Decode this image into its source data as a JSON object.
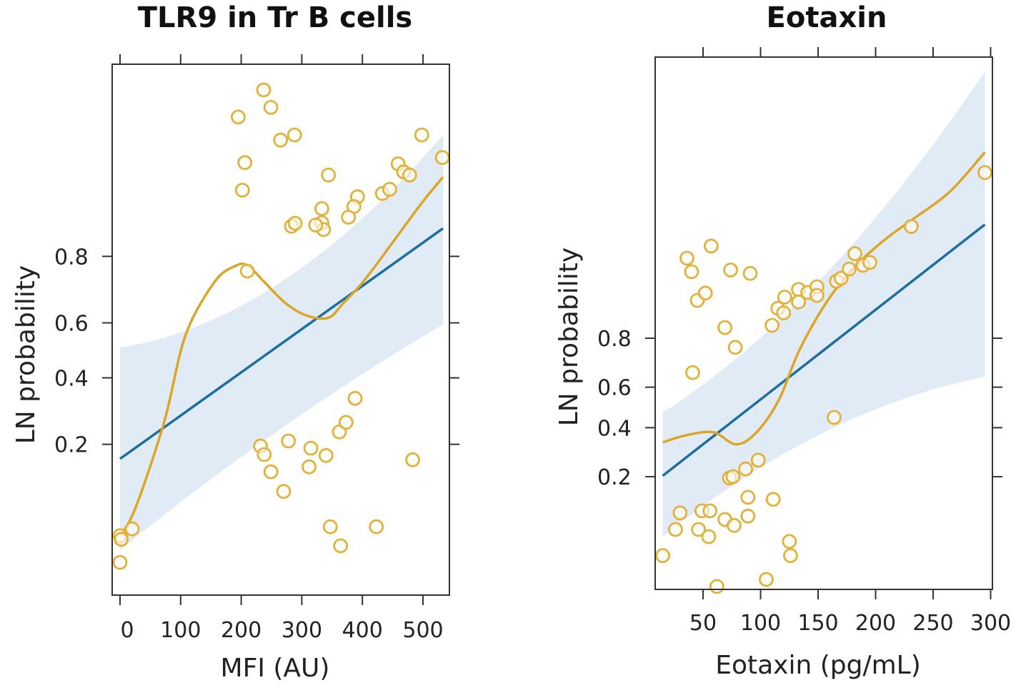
{
  "chart_data": [
    {
      "type": "scatter",
      "title": "TLR9 in Tr B cells",
      "xlabel": "MFI (AU)",
      "ylabel": "LN probability",
      "xlim": [
        -5,
        560
      ],
      "xticks": [
        0,
        100,
        200,
        300,
        400,
        500
      ],
      "xtick_labels": [
        "0",
        "100",
        "200",
        "300",
        "400",
        "500"
      ],
      "y_scale": "logit",
      "yticks": [
        0.2,
        0.4,
        0.6,
        0.8
      ],
      "ytick_labels": [
        "0.2",
        "0.4",
        "0.6",
        "0.8"
      ],
      "grid": false,
      "series": [
        {
          "name": "observations",
          "kind": "points",
          "color": "#e2b13c",
          "points": [
            [
              237,
              0.979
            ],
            [
              249,
              0.973
            ],
            [
              195,
              0.969
            ],
            [
              206,
              0.941
            ],
            [
              202,
              0.914
            ],
            [
              265,
              0.957
            ],
            [
              288,
              0.96
            ],
            [
              344,
              0.93
            ],
            [
              498,
              0.96
            ],
            [
              532,
              0.945
            ],
            [
              459,
              0.94
            ],
            [
              468,
              0.933
            ],
            [
              478,
              0.93
            ],
            [
              433,
              0.91
            ],
            [
              445,
              0.915
            ],
            [
              392,
              0.906
            ],
            [
              386,
              0.893
            ],
            [
              377,
              0.877
            ],
            [
              333,
              0.89
            ],
            [
              333,
              0.868
            ],
            [
              336,
              0.856
            ],
            [
              323,
              0.864
            ],
            [
              283,
              0.862
            ],
            [
              289,
              0.867
            ],
            [
              210,
              0.763
            ],
            [
              232,
              0.196
            ],
            [
              238,
              0.177
            ],
            [
              249,
              0.143
            ],
            [
              278,
              0.208
            ],
            [
              270,
              0.111
            ],
            [
              315,
              0.191
            ],
            [
              340,
              0.175
            ],
            [
              312,
              0.152
            ],
            [
              362,
              0.231
            ],
            [
              373,
              0.257
            ],
            [
              388,
              0.33
            ],
            [
              483,
              0.166
            ],
            [
              347,
              0.069
            ],
            [
              364,
              0.053
            ],
            [
              423,
              0.069
            ],
            [
              0,
              0.061
            ],
            [
              2,
              0.058
            ],
            [
              20,
              0.067
            ],
            [
              0,
              0.042
            ]
          ]
        },
        {
          "name": "logistic fit",
          "kind": "line",
          "color": "#1b6e9e",
          "points": [
            [
              0,
              0.168
            ],
            [
              533,
              0.858
            ]
          ]
        },
        {
          "name": "95% CI",
          "kind": "band",
          "color": "#dce8f4",
          "upper": [
            [
              0,
              0.51
            ],
            [
              266,
              0.733
            ],
            [
              533,
              0.96
            ]
          ],
          "lower": [
            [
              0,
              0.05
            ],
            [
              266,
              0.24
            ],
            [
              533,
              0.594
            ]
          ]
        },
        {
          "name": "smoothed",
          "kind": "line",
          "color": "#dba528",
          "points": [
            [
              0,
              0.06
            ],
            [
              26,
              0.09
            ],
            [
              73,
              0.259
            ],
            [
              108,
              0.555
            ],
            [
              156,
              0.733
            ],
            [
              191,
              0.777
            ],
            [
              211,
              0.777
            ],
            [
              238,
              0.733
            ],
            [
              274,
              0.666
            ],
            [
              309,
              0.625
            ],
            [
              344,
              0.618
            ],
            [
              368,
              0.666
            ],
            [
              403,
              0.737
            ],
            [
              450,
              0.831
            ],
            [
              498,
              0.898
            ],
            [
              533,
              0.928
            ]
          ]
        }
      ]
    },
    {
      "type": "scatter",
      "title": "Eotaxin",
      "xlabel": "Eotaxin (pg/mL)",
      "ylabel": "LN probability",
      "xlim": [
        8,
        301
      ],
      "xticks": [
        50,
        100,
        150,
        200,
        250,
        300
      ],
      "xtick_labels": [
        "50",
        "100",
        "150",
        "200",
        "250",
        "300"
      ],
      "y_scale": "logit",
      "yticks": [
        0.2,
        0.4,
        0.6,
        0.8
      ],
      "ytick_labels": [
        "0.2",
        "0.4",
        "0.6",
        "0.8"
      ],
      "grid": false,
      "series": [
        {
          "name": "observations",
          "kind": "points",
          "color": "#e2b13c",
          "points": [
            [
              36,
              0.952
            ],
            [
              40,
              0.938
            ],
            [
              57,
              0.962
            ],
            [
              45,
              0.895
            ],
            [
              52,
              0.908
            ],
            [
              74,
              0.94
            ],
            [
              91,
              0.936
            ],
            [
              69,
              0.832
            ],
            [
              78,
              0.769
            ],
            [
              41,
              0.668
            ],
            [
              110,
              0.838
            ],
            [
              115,
              0.879
            ],
            [
              120,
              0.869
            ],
            [
              121,
              0.901
            ],
            [
              133,
              0.914
            ],
            [
              133,
              0.892
            ],
            [
              141,
              0.909
            ],
            [
              149,
              0.918
            ],
            [
              149,
              0.904
            ],
            [
              166,
              0.926
            ],
            [
              170,
              0.93
            ],
            [
              177,
              0.941
            ],
            [
              182,
              0.956
            ],
            [
              189,
              0.945
            ],
            [
              195,
              0.948
            ],
            [
              231,
              0.974
            ],
            [
              295,
              0.991
            ],
            [
              164,
              0.45
            ],
            [
              73,
              0.196
            ],
            [
              76,
              0.2
            ],
            [
              87,
              0.226
            ],
            [
              98,
              0.258
            ],
            [
              89,
              0.142
            ],
            [
              111,
              0.137
            ],
            [
              30,
              0.108
            ],
            [
              49,
              0.112
            ],
            [
              56,
              0.112
            ],
            [
              69,
              0.096
            ],
            [
              77,
              0.086
            ],
            [
              89,
              0.102
            ],
            [
              46,
              0.08
            ],
            [
              55,
              0.07
            ],
            [
              26,
              0.08
            ],
            [
              125,
              0.064
            ],
            [
              126,
              0.049
            ],
            [
              15,
              0.049
            ],
            [
              105,
              0.031
            ],
            [
              62,
              0.027
            ]
          ]
        },
        {
          "name": "logistic fit",
          "kind": "line",
          "color": "#1b6e9e",
          "points": [
            [
              15,
              0.203
            ],
            [
              295,
              0.975
            ]
          ]
        },
        {
          "name": "95% CI",
          "kind": "band",
          "color": "#dce8f4",
          "upper": [
            [
              15,
              0.475
            ],
            [
              150,
              0.925
            ],
            [
              295,
              0.9988
            ]
          ],
          "lower": [
            [
              15,
              0.07
            ],
            [
              150,
              0.364
            ],
            [
              295,
              0.648
            ]
          ]
        },
        {
          "name": "smoothed",
          "kind": "line",
          "color": "#dba528",
          "points": [
            [
              15,
              0.332
            ],
            [
              35,
              0.364
            ],
            [
              59,
              0.378
            ],
            [
              79,
              0.323
            ],
            [
              97,
              0.381
            ],
            [
              116,
              0.539
            ],
            [
              134,
              0.761
            ],
            [
              159,
              0.897
            ],
            [
              184,
              0.946
            ],
            [
              209,
              0.967
            ],
            [
              234,
              0.978
            ],
            [
              265,
              0.987
            ],
            [
              295,
              0.994
            ]
          ]
        }
      ]
    }
  ]
}
